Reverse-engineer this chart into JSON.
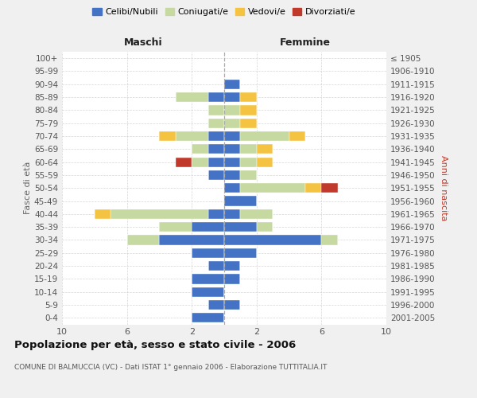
{
  "age_groups": [
    "0-4",
    "5-9",
    "10-14",
    "15-19",
    "20-24",
    "25-29",
    "30-34",
    "35-39",
    "40-44",
    "45-49",
    "50-54",
    "55-59",
    "60-64",
    "65-69",
    "70-74",
    "75-79",
    "80-84",
    "85-89",
    "90-94",
    "95-99",
    "100+"
  ],
  "birth_years": [
    "2001-2005",
    "1996-2000",
    "1991-1995",
    "1986-1990",
    "1981-1985",
    "1976-1980",
    "1971-1975",
    "1966-1970",
    "1961-1965",
    "1956-1960",
    "1951-1955",
    "1946-1950",
    "1941-1945",
    "1936-1940",
    "1931-1935",
    "1926-1930",
    "1921-1925",
    "1916-1920",
    "1911-1915",
    "1906-1910",
    "≤ 1905"
  ],
  "male_celibe": [
    2,
    1,
    2,
    2,
    1,
    2,
    4,
    2,
    1,
    0,
    0,
    1,
    1,
    1,
    1,
    0,
    0,
    1,
    0,
    0,
    0
  ],
  "male_coniugato": [
    0,
    0,
    0,
    0,
    0,
    0,
    2,
    2,
    6,
    0,
    0,
    0,
    1,
    1,
    2,
    1,
    1,
    2,
    0,
    0,
    0
  ],
  "male_vedovo": [
    0,
    0,
    0,
    0,
    0,
    0,
    0,
    0,
    1,
    0,
    0,
    0,
    0,
    0,
    1,
    0,
    0,
    0,
    0,
    0,
    0
  ],
  "male_divorziato": [
    0,
    0,
    0,
    0,
    0,
    0,
    0,
    0,
    0,
    0,
    0,
    0,
    1,
    0,
    0,
    0,
    0,
    0,
    0,
    0,
    0
  ],
  "female_celibe": [
    0,
    1,
    0,
    1,
    1,
    2,
    6,
    2,
    1,
    2,
    1,
    1,
    1,
    1,
    1,
    0,
    0,
    1,
    1,
    0,
    0
  ],
  "female_coniugato": [
    0,
    0,
    0,
    0,
    0,
    0,
    1,
    1,
    2,
    0,
    4,
    1,
    1,
    1,
    3,
    1,
    1,
    0,
    0,
    0,
    0
  ],
  "female_vedovo": [
    0,
    0,
    0,
    0,
    0,
    0,
    0,
    0,
    0,
    0,
    1,
    0,
    1,
    1,
    1,
    1,
    1,
    1,
    0,
    0,
    0
  ],
  "female_divorziata": [
    0,
    0,
    0,
    0,
    0,
    0,
    0,
    0,
    0,
    0,
    1,
    0,
    0,
    0,
    0,
    0,
    0,
    0,
    0,
    0,
    0
  ],
  "color_celibe": "#4472c4",
  "color_coniugato": "#c6d9a0",
  "color_vedovo": "#f5c342",
  "color_divorziato": "#c0392b",
  "xlim": 10,
  "title": "Popolazione per età, sesso e stato civile - 2006",
  "subtitle": "COMUNE DI BALMUCCIA (VC) - Dati ISTAT 1° gennaio 2006 - Elaborazione TUTTITALIA.IT",
  "ylabel_left": "Fasce di età",
  "ylabel_right": "Anni di nascita",
  "xlabel_male": "Maschi",
  "xlabel_female": "Femmine",
  "bg_color": "#f0f0f0",
  "plot_bg": "#ffffff"
}
